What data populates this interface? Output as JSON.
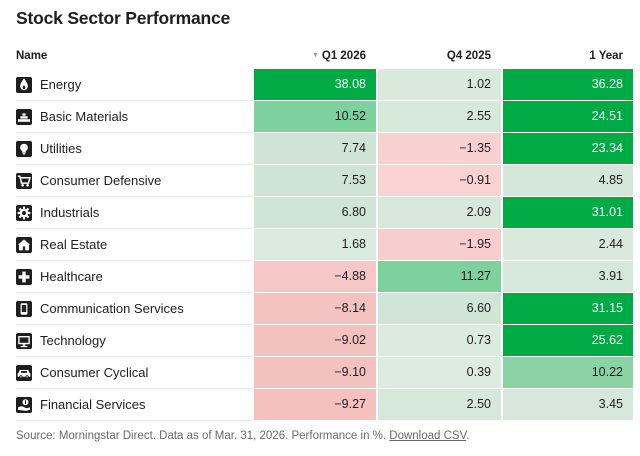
{
  "title": "Stock Sector Performance",
  "table": {
    "columns": [
      {
        "label": "Name"
      },
      {
        "label": "Q1 2026",
        "sort_icon": "▼",
        "sorted": "descending"
      },
      {
        "label": "Q4 2025"
      },
      {
        "label": "1 Year"
      }
    ],
    "rows": [
      {
        "name": "Energy",
        "icon": "flame-icon",
        "cells": [
          {
            "value": "38.08",
            "bg": "#00aa44",
            "fg": "#ffffff"
          },
          {
            "value": "1.02",
            "bg": "#d9eadd",
            "fg": "#1e1e1e"
          },
          {
            "value": "36.28",
            "bg": "#00aa44",
            "fg": "#ffffff"
          }
        ]
      },
      {
        "name": "Basic Materials",
        "icon": "materials-icon",
        "cells": [
          {
            "value": "10.52",
            "bg": "#7dd19c",
            "fg": "#1e1e1e"
          },
          {
            "value": "2.55",
            "bg": "#d6e8da",
            "fg": "#1e1e1e"
          },
          {
            "value": "24.51",
            "bg": "#00aa44",
            "fg": "#ffffff"
          }
        ]
      },
      {
        "name": "Utilities",
        "icon": "lightbulb-icon",
        "cells": [
          {
            "value": "7.74",
            "bg": "#cfe4d5",
            "fg": "#1e1e1e"
          },
          {
            "value": "−1.35",
            "bg": "#f8d0d0",
            "fg": "#1e1e1e"
          },
          {
            "value": "23.34",
            "bg": "#00aa44",
            "fg": "#ffffff"
          }
        ]
      },
      {
        "name": "Consumer Defensive",
        "icon": "shopping-cart-icon",
        "cells": [
          {
            "value": "7.53",
            "bg": "#cfe4d5",
            "fg": "#1e1e1e"
          },
          {
            "value": "−0.91",
            "bg": "#f9d3d3",
            "fg": "#1e1e1e"
          },
          {
            "value": "4.85",
            "bg": "#d5e7d9",
            "fg": "#1e1e1e"
          }
        ]
      },
      {
        "name": "Industrials",
        "icon": "gear-icon",
        "cells": [
          {
            "value": "6.80",
            "bg": "#d0e5d6",
            "fg": "#1e1e1e"
          },
          {
            "value": "2.09",
            "bg": "#d7e8db",
            "fg": "#1e1e1e"
          },
          {
            "value": "31.01",
            "bg": "#00aa44",
            "fg": "#ffffff"
          }
        ]
      },
      {
        "name": "Real Estate",
        "icon": "house-icon",
        "cells": [
          {
            "value": "1.68",
            "bg": "#dcebdf",
            "fg": "#1e1e1e"
          },
          {
            "value": "−1.95",
            "bg": "#f7cdcd",
            "fg": "#1e1e1e"
          },
          {
            "value": "2.44",
            "bg": "#d9eadd",
            "fg": "#1e1e1e"
          }
        ]
      },
      {
        "name": "Healthcare",
        "icon": "medical-cross-icon",
        "cells": [
          {
            "value": "−4.88",
            "bg": "#f6c7c7",
            "fg": "#1e1e1e"
          },
          {
            "value": "11.27",
            "bg": "#7dd19c",
            "fg": "#1e1e1e"
          },
          {
            "value": "3.91",
            "bg": "#d6e8da",
            "fg": "#1e1e1e"
          }
        ]
      },
      {
        "name": "Communication Services",
        "icon": "phone-icon",
        "cells": [
          {
            "value": "−8.14",
            "bg": "#f5c2c2",
            "fg": "#1e1e1e"
          },
          {
            "value": "6.60",
            "bg": "#d0e5d6",
            "fg": "#1e1e1e"
          },
          {
            "value": "31.15",
            "bg": "#00aa44",
            "fg": "#ffffff"
          }
        ]
      },
      {
        "name": "Technology",
        "icon": "monitor-icon",
        "cells": [
          {
            "value": "−9.02",
            "bg": "#f4c1c1",
            "fg": "#1e1e1e"
          },
          {
            "value": "0.73",
            "bg": "#dcebdf",
            "fg": "#1e1e1e"
          },
          {
            "value": "25.62",
            "bg": "#00aa44",
            "fg": "#ffffff"
          }
        ]
      },
      {
        "name": "Consumer Cyclical",
        "icon": "car-icon",
        "cells": [
          {
            "value": "−9.10",
            "bg": "#f4c1c1",
            "fg": "#1e1e1e"
          },
          {
            "value": "0.39",
            "bg": "#ddece0",
            "fg": "#1e1e1e"
          },
          {
            "value": "10.22",
            "bg": "#8bd3a4",
            "fg": "#1e1e1e"
          }
        ]
      },
      {
        "name": "Financial Services",
        "icon": "coin-hand-icon",
        "cells": [
          {
            "value": "−9.27",
            "bg": "#f4c0c0",
            "fg": "#1e1e1e"
          },
          {
            "value": "2.50",
            "bg": "#d6e8da",
            "fg": "#1e1e1e"
          },
          {
            "value": "3.45",
            "bg": "#d7e8db",
            "fg": "#1e1e1e"
          }
        ]
      }
    ]
  },
  "footer": {
    "text": "Source: Morningstar Direct. Data as of Mar. 31, 2026. Performance in %. ",
    "link_label": "Download CSV",
    "suffix": "."
  },
  "colors": {
    "positive_strong": "#00aa44",
    "positive_medium": "#7dd19c",
    "positive_light": "#d6e8da",
    "negative_light": "#f9d3d3",
    "negative_strong": "#f4c0c0",
    "row_divider": "#e8e8e8",
    "text": "#1e1e1e",
    "footer_text": "#696969"
  },
  "chart_data": {
    "type": "table",
    "title": "Stock Sector Performance",
    "units": "%",
    "sorted_by": "Q1 2026 descending",
    "color_coding": "heatmap: green = positive, pink/red = negative, intensity scales with magnitude",
    "columns": [
      "Name",
      "Q1 2026",
      "Q4 2025",
      "1 Year"
    ],
    "rows": [
      [
        "Energy",
        38.08,
        1.02,
        36.28
      ],
      [
        "Basic Materials",
        10.52,
        2.55,
        24.51
      ],
      [
        "Utilities",
        7.74,
        -1.35,
        23.34
      ],
      [
        "Consumer Defensive",
        7.53,
        -0.91,
        4.85
      ],
      [
        "Industrials",
        6.8,
        2.09,
        31.01
      ],
      [
        "Real Estate",
        1.68,
        -1.95,
        2.44
      ],
      [
        "Healthcare",
        -4.88,
        11.27,
        3.91
      ],
      [
        "Communication Services",
        -8.14,
        6.6,
        31.15
      ],
      [
        "Technology",
        -9.02,
        0.73,
        25.62
      ],
      [
        "Consumer Cyclical",
        -9.1,
        0.39,
        10.22
      ],
      [
        "Financial Services",
        -9.27,
        2.5,
        3.45
      ]
    ],
    "source_note": "Source: Morningstar Direct. Data as of Mar. 31, 2026. Performance in %."
  }
}
